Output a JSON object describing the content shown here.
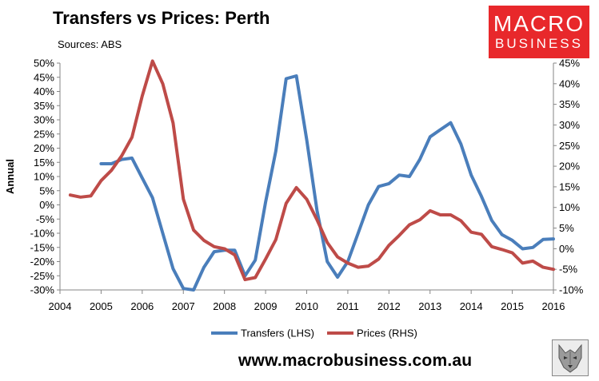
{
  "header": {
    "title": "Transfers vs Prices: Perth",
    "subtitle": "Sources: ABS"
  },
  "logo": {
    "line1": "MACRO",
    "line2": "BUSINESS"
  },
  "footer": {
    "website": "www.macrobusiness.com.au",
    "wolf_icon": "wolf-icon"
  },
  "colors": {
    "transfers": "#4a7ebb",
    "prices": "#be4b48",
    "logo_bg": "#e8282b",
    "axis": "#868686"
  },
  "chart_data": {
    "type": "line",
    "title": "Transfers vs Prices: Perth",
    "ylabel": "Annual",
    "left_axis": {
      "ylim": [
        -0.3,
        0.5
      ],
      "tick_labels": [
        "50%",
        "45%",
        "40%",
        "35%",
        "30%",
        "25%",
        "20%",
        "15%",
        "10%",
        "5%",
        "0%",
        "-5%",
        "-10%",
        "-15%",
        "-20%",
        "-25%",
        "-30%"
      ]
    },
    "right_axis": {
      "ylim": [
        -0.1,
        0.45
      ],
      "tick_labels": [
        "45%",
        "40%",
        "35%",
        "30%",
        "25%",
        "20%",
        "15%",
        "10%",
        "5%",
        "0%",
        "-5%",
        "-10%"
      ]
    },
    "x_axis": {
      "xlim": [
        2004,
        2016
      ],
      "tick_labels": [
        "2004",
        "2005",
        "2006",
        "2007",
        "2008",
        "2009",
        "2010",
        "2011",
        "2012",
        "2013",
        "2014",
        "2015",
        "2016"
      ]
    },
    "legend": {
      "position": "bottom"
    },
    "series": [
      {
        "name": "Transfers (LHS)",
        "axis": "left",
        "points": [
          [
            2005.0,
            0.145
          ],
          [
            2005.25,
            0.145
          ],
          [
            2005.5,
            0.16
          ],
          [
            2005.75,
            0.165
          ],
          [
            2006.0,
            0.095
          ],
          [
            2006.25,
            0.025
          ],
          [
            2006.5,
            -0.1
          ],
          [
            2006.75,
            -0.225
          ],
          [
            2007.0,
            -0.295
          ],
          [
            2007.25,
            -0.3
          ],
          [
            2007.5,
            -0.22
          ],
          [
            2007.75,
            -0.165
          ],
          [
            2008.0,
            -0.16
          ],
          [
            2008.25,
            -0.16
          ],
          [
            2008.5,
            -0.25
          ],
          [
            2008.75,
            -0.195
          ],
          [
            2009.0,
            0.01
          ],
          [
            2009.25,
            0.19
          ],
          [
            2009.5,
            0.445
          ],
          [
            2009.75,
            0.455
          ],
          [
            2010.0,
            0.23
          ],
          [
            2010.25,
            -0.02
          ],
          [
            2010.5,
            -0.2
          ],
          [
            2010.75,
            -0.255
          ],
          [
            2011.0,
            -0.2
          ],
          [
            2011.25,
            -0.1
          ],
          [
            2011.5,
            0.0
          ],
          [
            2011.75,
            0.065
          ],
          [
            2012.0,
            0.075
          ],
          [
            2012.25,
            0.105
          ],
          [
            2012.5,
            0.1
          ],
          [
            2012.75,
            0.16
          ],
          [
            2013.0,
            0.24
          ],
          [
            2013.25,
            0.265
          ],
          [
            2013.5,
            0.29
          ],
          [
            2013.75,
            0.215
          ],
          [
            2014.0,
            0.105
          ],
          [
            2014.25,
            0.03
          ],
          [
            2014.5,
            -0.055
          ],
          [
            2014.75,
            -0.105
          ],
          [
            2015.0,
            -0.125
          ],
          [
            2015.25,
            -0.155
          ],
          [
            2015.5,
            -0.15
          ],
          [
            2015.75,
            -0.122
          ],
          [
            2016.0,
            -0.12
          ]
        ]
      },
      {
        "name": "Prices (RHS)",
        "axis": "right",
        "points": [
          [
            2004.25,
            0.13
          ],
          [
            2004.5,
            0.125
          ],
          [
            2004.75,
            0.128
          ],
          [
            2005.0,
            0.165
          ],
          [
            2005.25,
            0.19
          ],
          [
            2005.5,
            0.225
          ],
          [
            2005.75,
            0.27
          ],
          [
            2006.0,
            0.37
          ],
          [
            2006.25,
            0.455
          ],
          [
            2006.5,
            0.4
          ],
          [
            2006.75,
            0.305
          ],
          [
            2007.0,
            0.12
          ],
          [
            2007.25,
            0.045
          ],
          [
            2007.5,
            0.02
          ],
          [
            2007.75,
            0.005
          ],
          [
            2008.0,
            0.0
          ],
          [
            2008.25,
            -0.015
          ],
          [
            2008.5,
            -0.075
          ],
          [
            2008.75,
            -0.07
          ],
          [
            2009.0,
            -0.025
          ],
          [
            2009.25,
            0.022
          ],
          [
            2009.5,
            0.11
          ],
          [
            2009.75,
            0.148
          ],
          [
            2010.0,
            0.12
          ],
          [
            2010.25,
            0.07
          ],
          [
            2010.5,
            0.015
          ],
          [
            2010.75,
            -0.02
          ],
          [
            2011.0,
            -0.035
          ],
          [
            2011.25,
            -0.045
          ],
          [
            2011.5,
            -0.042
          ],
          [
            2011.75,
            -0.025
          ],
          [
            2012.0,
            0.008
          ],
          [
            2012.25,
            0.032
          ],
          [
            2012.5,
            0.058
          ],
          [
            2012.75,
            0.07
          ],
          [
            2013.0,
            0.092
          ],
          [
            2013.25,
            0.082
          ],
          [
            2013.5,
            0.082
          ],
          [
            2013.75,
            0.068
          ],
          [
            2014.0,
            0.04
          ],
          [
            2014.25,
            0.035
          ],
          [
            2014.5,
            0.005
          ],
          [
            2014.75,
            -0.002
          ],
          [
            2015.0,
            -0.01
          ],
          [
            2015.25,
            -0.035
          ],
          [
            2015.5,
            -0.03
          ],
          [
            2015.75,
            -0.045
          ],
          [
            2016.0,
            -0.05
          ]
        ]
      }
    ]
  }
}
